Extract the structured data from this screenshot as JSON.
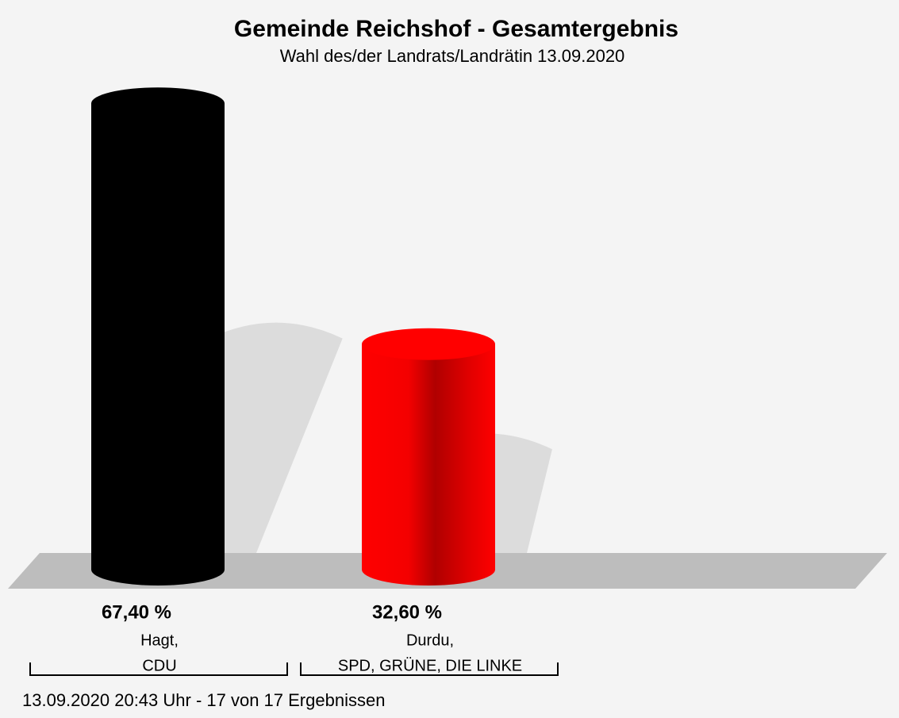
{
  "chart_data": {
    "type": "bar",
    "title": "Gemeinde Reichshof - Gesamtergebnis",
    "subtitle": "Wahl des/der Landrats/Landrätin 13.09.2020",
    "categories": [
      [
        "Hagt,",
        "CDU"
      ],
      [
        "Durdu,",
        "SPD, GRÜNE, DIE LINKE"
      ]
    ],
    "values": [
      67.4,
      32.6
    ],
    "value_labels": [
      "67,40 %",
      "32,60 %"
    ],
    "colors": [
      "#000000",
      "#ff0000"
    ],
    "footer": "13.09.2020 20:43 Uhr - 17 von 17 Ergebnissen"
  }
}
